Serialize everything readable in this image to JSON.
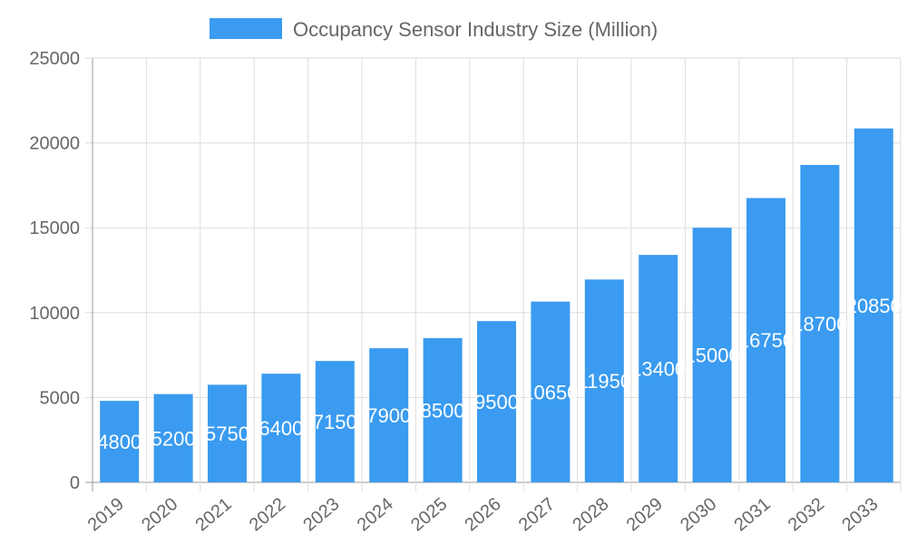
{
  "chart_data": {
    "type": "bar",
    "title": "",
    "xlabel": "",
    "ylabel": "",
    "categories": [
      "2019",
      "2020",
      "2021",
      "2022",
      "2023",
      "2024",
      "2025",
      "2026",
      "2027",
      "2028",
      "2029",
      "2030",
      "2031",
      "2032",
      "2033"
    ],
    "series": [
      {
        "name": "Occupancy Sensor Industry Size (Million)",
        "values": [
          4800,
          5200,
          5750,
          6400,
          7150,
          7900,
          8500,
          9500,
          10650,
          11950,
          13400,
          15000,
          16750,
          18700,
          20850
        ],
        "color": "#3a9bf0"
      }
    ],
    "ylim": [
      0,
      25000
    ],
    "yticks": [
      0,
      5000,
      10000,
      15000,
      20000,
      25000
    ],
    "grid": true,
    "legend": "top",
    "data_labels": true
  }
}
